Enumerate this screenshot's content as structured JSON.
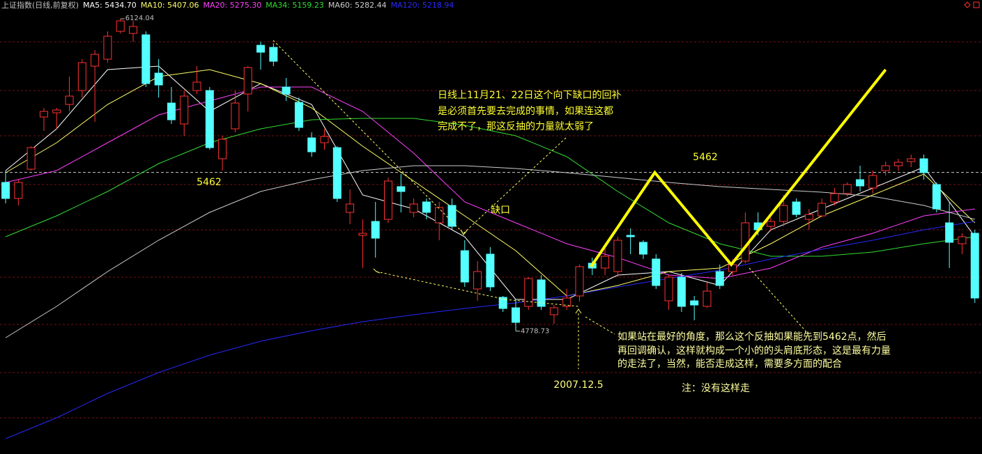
{
  "chart_data": {
    "type": "candlestick",
    "title": "上证指数(日线,前复权)",
    "xlim": [
      -0.44,
      76.56
    ],
    "ylim": [
      4249,
      6205
    ],
    "grid": true,
    "grid_levels": [
      6025,
      5815,
      5620,
      5410,
      5215,
      5011,
      4807,
      4600,
      4405
    ],
    "up_color": "#ff3232",
    "down_color": "#54ffff",
    "open": [
      5419,
      5350,
      5476,
      5701,
      5719,
      5755,
      5815,
      5920,
      5950,
      6070,
      6061,
      6055,
      5890,
      5761,
      5671,
      5815,
      5815,
      5521,
      5650,
      5800,
      6010,
      6001,
      5830,
      5764,
      5611,
      5590,
      5569,
      5290,
      5191,
      5251,
      5260,
      5401,
      5290,
      5335,
      5245,
      5320,
      5125,
      4960,
      5110,
      4924,
      4879,
      4885,
      4999,
      4849,
      4885,
      4930,
      5071,
      5050,
      5035,
      5191,
      5161,
      5089,
      4909,
      5011,
      4909,
      4885,
      5035,
      5035,
      5080,
      5245,
      5230,
      5251,
      5335,
      5260,
      5275,
      5335,
      5371,
      5431,
      5395,
      5470,
      5491,
      5509,
      5521,
      5410,
      5245,
      5155,
      5200
    ],
    "high": [
      5470,
      5431,
      5575,
      5740,
      5740,
      5875,
      5950,
      5989,
      6070,
      6124.04,
      6115,
      6070,
      5950,
      5830,
      5815,
      5920,
      5830,
      5620,
      5815,
      5920,
      6025,
      6019,
      5869,
      5785,
      5635,
      5650,
      5575,
      5389,
      5260,
      5335,
      5440,
      5455,
      5350,
      5350,
      5335,
      5350,
      5170,
      5080,
      5140,
      4930,
      4915,
      5011,
      5020,
      4891,
      4960,
      5065,
      5095,
      5140,
      5185,
      5221,
      5170,
      5110,
      5020,
      5029,
      4930,
      4990,
      5065,
      5089,
      5290,
      5290,
      5269,
      5365,
      5350,
      5305,
      5350,
      5395,
      5419,
      5491,
      5470,
      5509,
      5521,
      5539,
      5539,
      5419,
      5335,
      5200,
      5215
    ],
    "low": [
      5329,
      5320,
      5470,
      5641,
      5650,
      5725,
      5785,
      5680,
      5935,
      6061,
      6025,
      5830,
      5785,
      5671,
      5620,
      5800,
      5560,
      5470,
      5635,
      5725,
      5905,
      5920,
      5770,
      5641,
      5530,
      5560,
      5335,
      5239,
      5050,
      5095,
      5245,
      5290,
      5269,
      5260,
      5170,
      5215,
      4969,
      4909,
      4951,
      4861,
      4778.73,
      4870,
      4870,
      4810,
      4870,
      4906,
      5020,
      5020,
      5011,
      5110,
      5089,
      4960,
      4870,
      4861,
      4825,
      4879,
      4960,
      5020,
      5071,
      5191,
      5209,
      5230,
      5269,
      5215,
      5269,
      5320,
      5359,
      5380,
      5371,
      5449,
      5470,
      5485,
      5431,
      5290,
      5050,
      5110,
      4900
    ],
    "close": [
      5350,
      5419,
      5569,
      5725,
      5731,
      5791,
      5935,
      5971,
      6049,
      6115,
      6091,
      5845,
      5839,
      5689,
      5791,
      5851,
      5569,
      5605,
      5761,
      5914,
      5980,
      5941,
      5800,
      5656,
      5551,
      5617,
      5350,
      5326,
      5200,
      5179,
      5425,
      5380,
      5326,
      5290,
      5311,
      5230,
      4990,
      5035,
      4969,
      4876,
      4816,
      5005,
      4885,
      4879,
      4921,
      5056,
      5050,
      5101,
      5170,
      5185,
      5110,
      4975,
      5011,
      4885,
      4891,
      4951,
      4975,
      5065,
      5245,
      5215,
      5251,
      5320,
      5281,
      5281,
      5329,
      5371,
      5410,
      5404,
      5449,
      5491,
      5506,
      5521,
      5461,
      5305,
      5161,
      5185,
      4921
    ],
    "series": [
      {
        "name": "MA5: 5434.70",
        "color": "#ffffff",
        "x": [
          0,
          4,
          8,
          12,
          16,
          20,
          24,
          28,
          32,
          36,
          40,
          44,
          48,
          52,
          56,
          60,
          64,
          68,
          72,
          76
        ],
        "values": [
          5470,
          5650,
          5905,
          5920,
          5725,
          5845,
          5755,
          5365,
          5305,
          5185,
          4915,
          4915,
          5020,
          5035,
          4975,
          5215,
          5305,
          5395,
          5485,
          5185
        ]
      },
      {
        "name": "MA10: 5407.06",
        "color": "#ffff66",
        "x": [
          0,
          4,
          8,
          12,
          16,
          20,
          24,
          28,
          32,
          36,
          40,
          44,
          48,
          52,
          56,
          60,
          64,
          68,
          72,
          76
        ],
        "values": [
          5461,
          5590,
          5755,
          5875,
          5905,
          5845,
          5740,
          5575,
          5425,
          5275,
          5125,
          4930,
          4975,
          5035,
          5050,
          5155,
          5275,
          5365,
          5455,
          5245
        ]
      },
      {
        "name": "MA20: 5275.30",
        "color": "#ff40ff",
        "x": [
          0,
          4,
          8,
          12,
          16,
          20,
          24,
          28,
          32,
          36,
          40,
          44,
          48,
          52,
          56,
          60,
          64,
          68,
          72,
          76
        ],
        "values": [
          5419,
          5470,
          5590,
          5710,
          5770,
          5830,
          5830,
          5725,
          5545,
          5335,
          5245,
          5155,
          5095,
          5020,
          5005,
          5050,
          5140,
          5200,
          5275,
          5305
        ]
      },
      {
        "name": "MA34: 5159.23",
        "color": "#33dd33",
        "x": [
          0,
          4,
          8,
          12,
          16,
          20,
          24,
          28,
          32,
          36,
          40,
          44,
          48,
          52,
          56,
          60,
          64,
          68,
          72,
          76
        ],
        "values": [
          5185,
          5275,
          5380,
          5500,
          5590,
          5650,
          5689,
          5695,
          5695,
          5665,
          5620,
          5530,
          5380,
          5245,
          5155,
          5101,
          5101,
          5119,
          5155,
          5185
        ]
      },
      {
        "name": "MA60: 5282.44",
        "color": "#cccccc",
        "x": [
          0,
          4,
          8,
          12,
          16,
          20,
          24,
          28,
          32,
          36,
          40,
          44,
          48,
          52,
          56,
          60,
          64,
          68,
          72,
          76
        ],
        "values": [
          4750,
          4885,
          5035,
          5170,
          5290,
          5380,
          5431,
          5470,
          5491,
          5491,
          5479,
          5461,
          5440,
          5419,
          5401,
          5389,
          5377,
          5359,
          5320,
          5260
        ]
      },
      {
        "name": "MA120: 5218.94",
        "color": "#2828ff",
        "x": [
          0,
          4,
          8,
          12,
          16,
          20,
          24,
          28,
          32,
          36,
          40,
          44,
          48,
          52,
          56,
          60,
          64,
          68,
          72,
          76
        ],
        "values": [
          4315,
          4405,
          4510,
          4600,
          4675,
          4735,
          4780,
          4819,
          4849,
          4876,
          4900,
          4930,
          4969,
          5005,
          5041,
          5089,
          5131,
          5170,
          5215,
          5251
        ]
      }
    ],
    "reference_line": 5462,
    "projection": {
      "color": "#ffff00",
      "x": [
        45.9,
        50.9,
        56.9,
        69
      ],
      "values": [
        5056,
        5462,
        5065,
        5905
      ]
    },
    "annotations": {
      "gap": "缺口",
      "note1": [
        "日线上11月21、22日这个向下缺口的回补",
        "是必须首先要去完成的事情，如果连这都",
        "完成不了，那这反抽的力量就太弱了"
      ],
      "note2": [
        "如果站在最好的角度，那么这个反抽如果能先到5462点，然后",
        "再回调确认，这样就构成一个小的的头肩底形态，这是最有力量",
        "的走法了，当然，能否走成这样，需要多方面的配合"
      ],
      "date": "2007.12.5",
      "note3": "注：没有这样走"
    }
  }
}
